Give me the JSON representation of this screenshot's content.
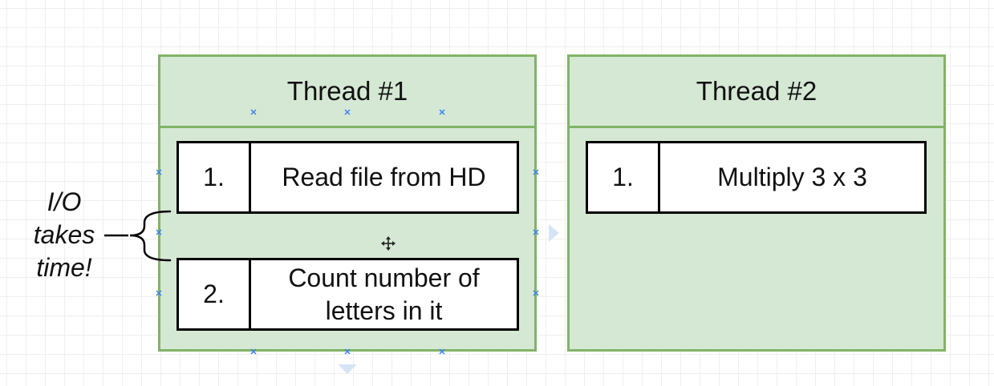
{
  "threads": [
    {
      "title": "Thread #1",
      "tasks": [
        {
          "number": "1.",
          "text": "Read file from HD"
        },
        {
          "number": "2.",
          "text": "Count number of\nletters in it"
        }
      ]
    },
    {
      "title": "Thread #2",
      "tasks": [
        {
          "number": "1.",
          "text": "Multiply 3 x 3"
        }
      ]
    }
  ],
  "annotation": {
    "text": "I/O\ntakes\ntime!"
  },
  "colors": {
    "container_fill": "#d5e8d4",
    "container_border": "#82b366",
    "task_fill": "#ffffff",
    "task_border": "#000000",
    "selection_handles": "#3b82f6"
  },
  "icons": {
    "move_cursor": "move-cursor-icon",
    "bracket": "curly-brace-icon"
  }
}
